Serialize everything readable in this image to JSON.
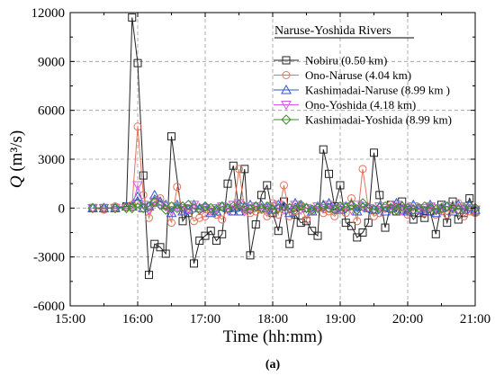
{
  "chart_data": {
    "type": "line",
    "panel_label": "(a)",
    "xlabel": "Time (hh:mm)",
    "ylabel": {
      "symbol": "Q",
      "units": " (m³/s)"
    },
    "xlim": [
      900,
      1260
    ],
    "ylim": [
      -6000,
      12000
    ],
    "xticks": [
      {
        "v": 900,
        "label": "15:00"
      },
      {
        "v": 960,
        "label": "16:00"
      },
      {
        "v": 1020,
        "label": "17:00"
      },
      {
        "v": 1080,
        "label": "18:00"
      },
      {
        "v": 1140,
        "label": "19:00"
      },
      {
        "v": 1200,
        "label": "20:00"
      },
      {
        "v": 1260,
        "label": "21:00"
      }
    ],
    "yticks": [
      {
        "v": -6000,
        "label": "-6000"
      },
      {
        "v": -3000,
        "label": "-3000"
      },
      {
        "v": 0,
        "label": "0"
      },
      {
        "v": 3000,
        "label": "3000"
      },
      {
        "v": 6000,
        "label": "6000"
      },
      {
        "v": 9000,
        "label": "9000"
      },
      {
        "v": 12000,
        "label": "12000"
      }
    ],
    "grid": true,
    "legend": {
      "title": "Naruse-Yoshida Rivers",
      "placement": "top-right"
    },
    "series": [
      {
        "name": "Nobiru (0.50 km)",
        "color": "#222222",
        "marker": "square",
        "x": [
          920,
          930,
          940,
          950,
          955,
          960,
          965,
          970,
          975,
          980,
          985,
          990,
          1000,
          1005,
          1010,
          1015,
          1020,
          1025,
          1030,
          1035,
          1040,
          1045,
          1050,
          1055,
          1060,
          1065,
          1070,
          1075,
          1080,
          1085,
          1090,
          1095,
          1100,
          1105,
          1110,
          1115,
          1120,
          1125,
          1130,
          1135,
          1140,
          1145,
          1150,
          1155,
          1160,
          1165,
          1170,
          1175,
          1180,
          1185,
          1190,
          1195,
          1200,
          1205,
          1210,
          1215,
          1220,
          1225,
          1230,
          1235,
          1240,
          1245,
          1250,
          1255,
          1260
        ],
        "y": [
          0,
          0,
          0,
          100,
          11700,
          8900,
          2000,
          -4100,
          -2200,
          -2400,
          -2800,
          4400,
          -800,
          -300,
          -3400,
          -2000,
          -1700,
          -1400,
          -2000,
          -1600,
          1500,
          2600,
          -200,
          2400,
          -2900,
          -1000,
          800,
          1400,
          -300,
          -1400,
          400,
          -2200,
          -400,
          -900,
          -800,
          -1400,
          -1700,
          3600,
          2100,
          100,
          1400,
          -900,
          -1100,
          -1800,
          -1500,
          -900,
          3400,
          800,
          -1200,
          200,
          -200,
          400,
          -100,
          -700,
          -300,
          -600,
          -200,
          -1600,
          200,
          -900,
          400,
          -700,
          -300,
          600,
          -200
        ]
      },
      {
        "name": "Ono-Naruse (4.04 km)",
        "color": "#e4735e",
        "marker": "circle",
        "x": [
          920,
          930,
          940,
          950,
          955,
          960,
          965,
          970,
          975,
          980,
          985,
          990,
          995,
          1000,
          1005,
          1010,
          1015,
          1020,
          1025,
          1030,
          1035,
          1040,
          1045,
          1050,
          1055,
          1060,
          1065,
          1070,
          1075,
          1080,
          1085,
          1090,
          1095,
          1100,
          1105,
          1110,
          1115,
          1120,
          1125,
          1130,
          1135,
          1140,
          1145,
          1150,
          1155,
          1160,
          1165,
          1170,
          1175,
          1180,
          1185,
          1190,
          1195,
          1200,
          1205,
          1210,
          1215,
          1220,
          1225,
          1230,
          1235,
          1240,
          1245,
          1250,
          1255,
          1260
        ],
        "y": [
          0,
          -100,
          100,
          100,
          200,
          5000,
          800,
          -600,
          300,
          600,
          100,
          -900,
          1300,
          -200,
          0,
          -800,
          -600,
          -500,
          -200,
          -400,
          -700,
          0,
          -200,
          2400,
          -100,
          -300,
          -200,
          -100,
          -500,
          300,
          -400,
          1400,
          -500,
          -200,
          100,
          -700,
          -200,
          0,
          -300,
          -200,
          -500,
          -100,
          -300,
          600,
          -800,
          2400,
          0,
          -500,
          -300,
          0,
          200,
          100,
          -200,
          -400,
          -100,
          0,
          -300,
          100,
          -400,
          -200,
          -400,
          -100,
          300,
          -500,
          -200,
          -300
        ]
      },
      {
        "name": "Kashimadai-Naruse (8.99 km )",
        "color": "#2f55d4",
        "marker": "triangle-up",
        "x": [
          920,
          930,
          940,
          950,
          955,
          960,
          965,
          970,
          975,
          980,
          985,
          990,
          995,
          1000,
          1005,
          1010,
          1015,
          1020,
          1025,
          1030,
          1035,
          1040,
          1045,
          1050,
          1055,
          1060,
          1065,
          1070,
          1075,
          1080,
          1085,
          1090,
          1095,
          1100,
          1105,
          1110,
          1115,
          1120,
          1125,
          1130,
          1135,
          1140,
          1145,
          1150,
          1155,
          1160,
          1165,
          1170,
          1175,
          1180,
          1185,
          1190,
          1195,
          1200,
          1205,
          1210,
          1215,
          1220,
          1225,
          1230,
          1235,
          1240,
          1245,
          1250,
          1255,
          1260
        ],
        "y": [
          0,
          0,
          0,
          100,
          100,
          700,
          0,
          100,
          800,
          400,
          200,
          -300,
          200,
          -200,
          -100,
          200,
          0,
          100,
          -300,
          -200,
          100,
          0,
          -200,
          -200,
          100,
          200,
          100,
          200,
          0,
          -100,
          200,
          100,
          -300,
          300,
          100,
          0,
          -200,
          100,
          200,
          300,
          0,
          -100,
          100,
          200,
          -200,
          100,
          0,
          -100,
          100,
          -200,
          0,
          300,
          -100,
          -200,
          200,
          -100,
          -200,
          200,
          -300,
          0,
          100,
          -200,
          200,
          -100,
          200,
          -100
        ]
      },
      {
        "name": "Ono-Yoshida (4.18 km)",
        "color": "#d55ae6",
        "marker": "triangle-down",
        "x": [
          920,
          930,
          940,
          950,
          955,
          960,
          965,
          970,
          975,
          980,
          985,
          990,
          995,
          1000,
          1005,
          1010,
          1015,
          1020,
          1025,
          1030,
          1035,
          1040,
          1045,
          1050,
          1055,
          1060,
          1065,
          1070,
          1075,
          1080,
          1085,
          1090,
          1095,
          1100,
          1105,
          1110,
          1115,
          1120,
          1125,
          1130,
          1135,
          1140,
          1145,
          1150,
          1155,
          1160,
          1165,
          1170,
          1175,
          1180,
          1185,
          1190,
          1195,
          1200,
          1205,
          1210,
          1215,
          1220,
          1225,
          1230,
          1235,
          1240,
          1245,
          1250,
          1255,
          1260
        ],
        "y": [
          0,
          0,
          0,
          0,
          0,
          1400,
          200,
          -100,
          400,
          200,
          100,
          -200,
          100,
          0,
          -100,
          200,
          -100,
          0,
          -100,
          0,
          100,
          -100,
          200,
          300,
          -200,
          0,
          100,
          0,
          -100,
          100,
          200,
          -100,
          0,
          200,
          -100,
          0,
          -100,
          100,
          0,
          200,
          -100,
          0,
          100,
          -100,
          200,
          100,
          0,
          -100,
          100,
          0,
          -100,
          200,
          -100,
          0,
          100,
          -100,
          0,
          100,
          0,
          -100,
          100,
          0,
          -100,
          100,
          0,
          -100
        ]
      },
      {
        "name": "Kashimadai-Yoshida (8.99 km)",
        "color": "#3f8a2a",
        "marker": "diamond",
        "x": [
          920,
          930,
          940,
          950,
          955,
          960,
          965,
          970,
          975,
          980,
          985,
          990,
          995,
          1000,
          1005,
          1010,
          1015,
          1020,
          1025,
          1030,
          1035,
          1040,
          1045,
          1050,
          1055,
          1060,
          1065,
          1070,
          1075,
          1080,
          1085,
          1090,
          1095,
          1100,
          1105,
          1110,
          1115,
          1120,
          1125,
          1130,
          1135,
          1140,
          1145,
          1150,
          1155,
          1160,
          1165,
          1170,
          1175,
          1180,
          1185,
          1190,
          1195,
          1200,
          1205,
          1210,
          1215,
          1220,
          1225,
          1230,
          1235,
          1240,
          1245,
          1250,
          1255,
          1260
        ],
        "y": [
          0,
          0,
          0,
          0,
          0,
          300,
          0,
          100,
          400,
          200,
          -100,
          100,
          0,
          100,
          200,
          0,
          -100,
          100,
          0,
          -100,
          100,
          0,
          100,
          200,
          0,
          -100,
          100,
          0,
          100,
          -100,
          0,
          100,
          0,
          -100,
          200,
          0,
          -100,
          0,
          100,
          0,
          -100,
          100,
          0,
          200,
          -100,
          300,
          0,
          -100,
          0,
          100,
          0,
          -100,
          100,
          0,
          -100,
          0,
          100,
          0,
          -100,
          0,
          100,
          0,
          -100,
          0,
          100,
          0
        ]
      }
    ]
  }
}
